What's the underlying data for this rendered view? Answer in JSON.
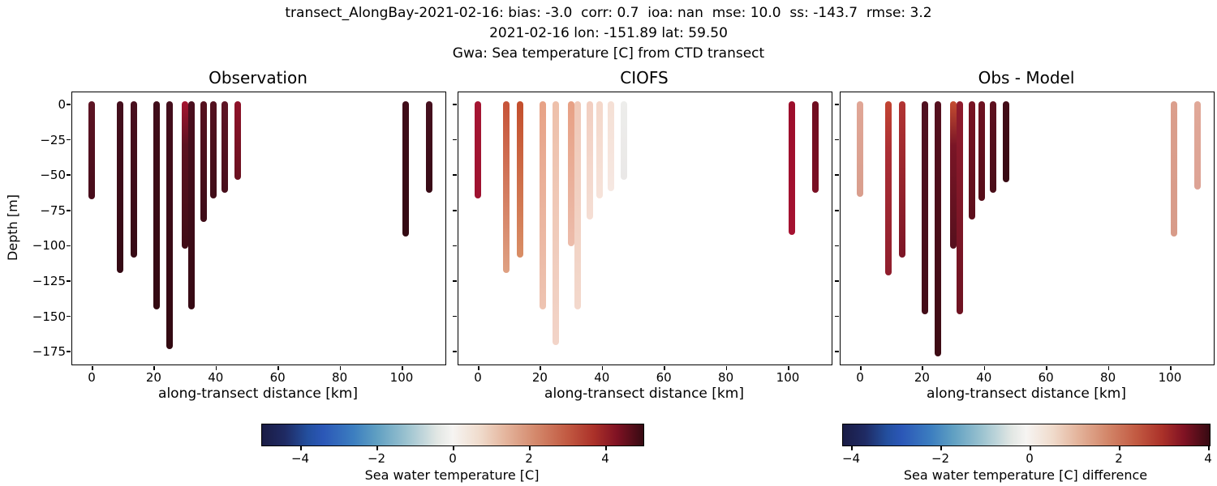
{
  "header": {
    "line1": "transect_AlongBay-2021-02-16: bias: -3.0  corr: 0.7  ioa: nan  mse: 10.0  ss: -143.7  rmse: 3.2",
    "line2": "2021-02-16 lon: -151.89 lat: 59.50",
    "line3": "Gwa: Sea temperature [C] from CTD transect"
  },
  "axes": {
    "ylabel": "Depth [m]",
    "xlabel": "along-transect distance [km]",
    "y_tick_labels": [
      "0",
      "−25",
      "−50",
      "−75",
      "−100",
      "−125",
      "−150",
      "−175"
    ],
    "y_tick_values_m": [
      0,
      -25,
      -50,
      -75,
      -100,
      -125,
      -150,
      -175
    ],
    "x_tick_labels": [
      "0",
      "20",
      "40",
      "60",
      "80",
      "100"
    ],
    "x_tick_values_km": [
      0,
      20,
      40,
      60,
      80,
      100
    ]
  },
  "panels": [
    {
      "title": "Observation",
      "bars": [
        {
          "km": 0,
          "depth": 65,
          "c1": "#5e1424",
          "c2": "#470d1b"
        },
        {
          "km": 9.2,
          "depth": 117,
          "c1": "#440e1c",
          "c2": "#340a14"
        },
        {
          "km": 13.6,
          "depth": 106,
          "c1": "#490f1e",
          "c2": "#370b15"
        },
        {
          "km": 21,
          "depth": 143,
          "c1": "#410d1a",
          "c2": "#330a12"
        },
        {
          "km": 25,
          "depth": 171,
          "c1": "#440e1c",
          "c2": "#320911"
        },
        {
          "km": 30,
          "depth": 100,
          "c1": "#a5142f",
          "cm": "#5c1220",
          "c2": "#3f0c16"
        },
        {
          "km": 32.2,
          "depth": 143,
          "c1": "#4b0f1e",
          "c2": "#360a14"
        },
        {
          "km": 36,
          "depth": 81,
          "c1": "#56111f",
          "c2": "#3f0c18"
        },
        {
          "km": 39.3,
          "depth": 64,
          "c1": "#54111f",
          "c2": "#410d18"
        },
        {
          "km": 43,
          "depth": 60,
          "c1": "#5f1425",
          "c2": "#470e1b"
        },
        {
          "km": 47,
          "depth": 51,
          "c1": "#8f1229",
          "c2": "#691120"
        },
        {
          "km": 101.3,
          "depth": 91,
          "c1": "#400c19",
          "c2": "#340a13"
        },
        {
          "km": 108.9,
          "depth": 60,
          "c1": "#46101e",
          "c2": "#380b16"
        }
      ]
    },
    {
      "title": "CIOFS",
      "bars": [
        {
          "km": 0,
          "depth": 64,
          "c1": "#a51532",
          "c2": "#9e1230"
        },
        {
          "km": 9.2,
          "depth": 117,
          "c1": "#c65338",
          "c2": "#dfa183"
        },
        {
          "km": 13.6,
          "depth": 106,
          "c1": "#c34e2c",
          "c2": "#d98e66"
        },
        {
          "km": 21,
          "depth": 143,
          "c1": "#e7a286",
          "c2": "#eec4b2"
        },
        {
          "km": 25,
          "depth": 168,
          "c1": "#eec0aa",
          "c2": "#f2d4c8"
        },
        {
          "km": 30,
          "depth": 98,
          "c1": "#e7a084",
          "c2": "#ecbcab"
        },
        {
          "km": 32.2,
          "depth": 143,
          "c1": "#f0c9b8",
          "c2": "#f3d8cc"
        },
        {
          "km": 36,
          "depth": 79,
          "c1": "#f2cec0",
          "c2": "#f5ded4"
        },
        {
          "km": 39.3,
          "depth": 64,
          "c1": "#f4d7c9",
          "c2": "#f6e3da"
        },
        {
          "km": 43,
          "depth": 59,
          "c1": "#f5e0d5",
          "c2": "#f6e8e2"
        },
        {
          "km": 47,
          "depth": 51,
          "c1": "#ededeb",
          "c2": "#eae8e7"
        },
        {
          "km": 101.3,
          "depth": 90,
          "c1": "#9c0e2b",
          "c2": "#a51231"
        },
        {
          "km": 108.9,
          "depth": 60,
          "c1": "#700d20",
          "c2": "#7a0f24"
        }
      ]
    },
    {
      "title": "Obs - Model",
      "bars": [
        {
          "km": 0,
          "depth": 63,
          "c1": "#e0a696",
          "c2": "#d99e8d"
        },
        {
          "km": 9.2,
          "depth": 119,
          "c1": "#c24431",
          "cm": "#ab2e35",
          "c2": "#8f1e2d"
        },
        {
          "km": 13.6,
          "depth": 106,
          "c1": "#b23433",
          "c2": "#7c1526"
        },
        {
          "km": 21,
          "depth": 146,
          "c1": "#511020",
          "c2": "#430c18"
        },
        {
          "km": 25,
          "depth": 176,
          "c1": "#56101f",
          "c2": "#3d0b14"
        },
        {
          "km": 30,
          "depth": 100,
          "c1": "#c54d31",
          "cm": "#7a1526",
          "c2": "#56101d"
        },
        {
          "km": 32.2,
          "depth": 146,
          "c1": "#901b2d",
          "c2": "#6e1322"
        },
        {
          "km": 36,
          "depth": 79,
          "c1": "#781323",
          "c2": "#5c0f1c"
        },
        {
          "km": 39.3,
          "depth": 66,
          "c1": "#6e1121",
          "c2": "#560e1a"
        },
        {
          "km": 43,
          "depth": 60,
          "c1": "#5e101f",
          "c2": "#4a0d18"
        },
        {
          "km": 47,
          "depth": 53,
          "c1": "#430c17",
          "c2": "#380a13"
        },
        {
          "km": 101.3,
          "depth": 91,
          "c1": "#db9f8d",
          "c2": "#d89b89"
        },
        {
          "km": 108.9,
          "depth": 58,
          "c1": "#e0a898",
          "c2": "#dda395"
        }
      ]
    }
  ],
  "colorbars": [
    {
      "label": "Sea water temperature [C]",
      "tick_labels": [
        "−4",
        "−2",
        "0",
        "2",
        "4"
      ],
      "tick_values": [
        -4,
        -2,
        0,
        2,
        4
      ]
    },
    {
      "label": "Sea water temperature [C] difference",
      "tick_labels": [
        "−4",
        "−2",
        "0",
        "2",
        "4"
      ],
      "tick_values": [
        -4,
        -2,
        0,
        2,
        4
      ]
    }
  ],
  "chart_data": {
    "type": "scatter",
    "title": "Gwa: Sea temperature [C] from CTD transect",
    "subtitle": "transect_AlongBay-2021-02-16 — 2021-02-16 lon: -151.89 lat: 59.50",
    "stats": {
      "bias": -3.0,
      "corr": 0.7,
      "ioa": "nan",
      "mse": 10.0,
      "ss": -143.7,
      "rmse": 3.2
    },
    "xlabel": "along-transect distance [km]",
    "ylabel": "Depth [m]",
    "xlim": [
      -5.4,
      114.2
    ],
    "ylim": [
      -183.75,
      8.75
    ],
    "grid": false,
    "colormap": "diverging blue-white-red (balance)",
    "colormap_range_C": [
      -5,
      5
    ],
    "diff_colormap_range_C": [
      -4.2,
      4.2
    ],
    "stations_x_km": [
      0,
      9.2,
      13.6,
      21,
      25,
      30,
      32.2,
      36,
      39.3,
      43,
      47,
      101.3,
      108.9
    ],
    "profile_bottom_depth_m": {
      "observation": [
        -65,
        -117,
        -106,
        -143,
        -171,
        -100,
        -143,
        -81,
        -64,
        -60,
        -51,
        -91,
        -60
      ],
      "ciofs": [
        -64,
        -117,
        -106,
        -143,
        -168,
        -98,
        -143,
        -79,
        -64,
        -59,
        -51,
        -90,
        -60
      ],
      "obs_minus_model": [
        -63,
        -119,
        -106,
        -146,
        -176,
        -100,
        -146,
        -79,
        -66,
        -60,
        -53,
        -91,
        -58
      ]
    },
    "estimated_surface_value_C": {
      "observation": [
        4.6,
        4.9,
        4.8,
        4.9,
        4.9,
        3.9,
        4.8,
        4.7,
        4.7,
        4.6,
        4.2,
        4.9,
        4.8
      ],
      "ciofs": [
        4.0,
        2.9,
        3.0,
        1.7,
        1.2,
        1.8,
        0.9,
        0.8,
        0.6,
        0.4,
        0.1,
        4.1,
        4.5
      ],
      "obs_minus_model": [
        1.1,
        2.4,
        2.7,
        3.7,
        3.6,
        2.3,
        3.0,
        3.3,
        3.4,
        3.6,
        3.9,
        1.2,
        1.1
      ]
    },
    "colorbar_key_colors": {
      "neg_end": "#1a1c45",
      "zero": "#f6f4f2",
      "pos_end": "#360a12"
    }
  }
}
